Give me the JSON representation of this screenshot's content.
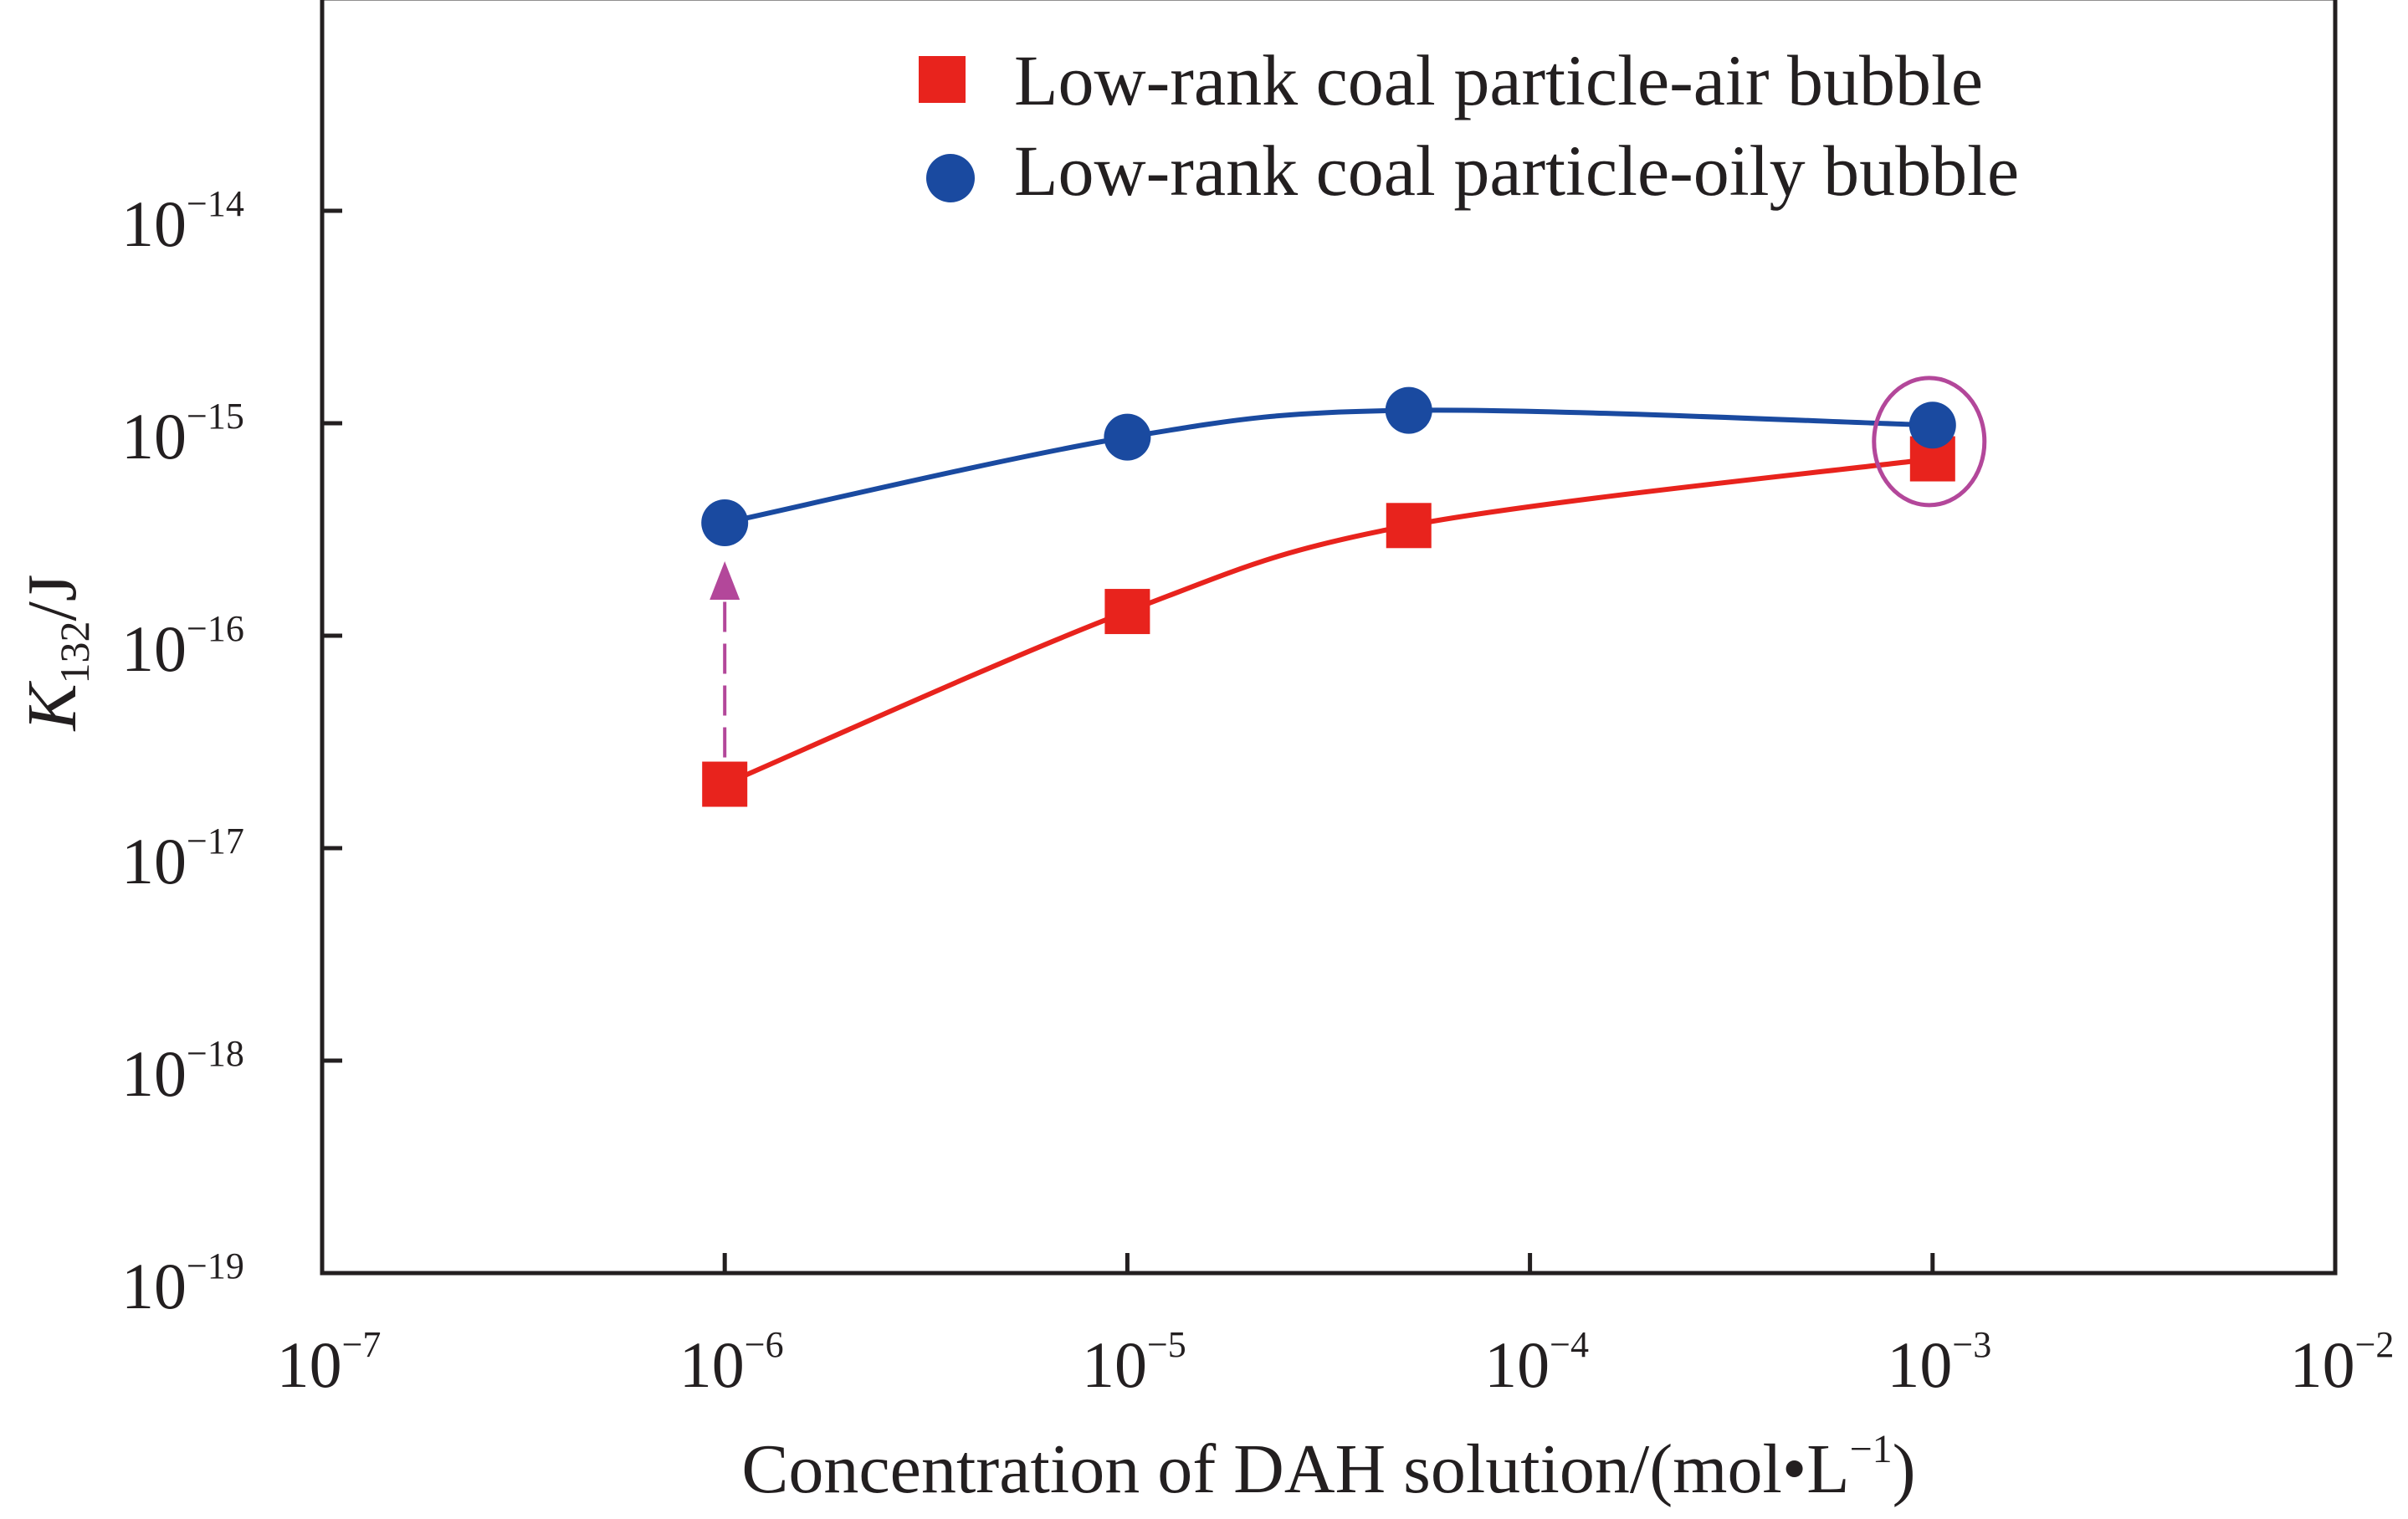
{
  "chart_data": {
    "type": "scatter",
    "title": "",
    "xlabel": {
      "text": "Concentration of DAH solution/(mol•L",
      "sup": "−1",
      "tail": ")"
    },
    "ylabel": {
      "main": "K",
      "sub": "132",
      "tail": "/J"
    },
    "x_scale": "log",
    "y_scale": "log",
    "xlim": [
      1e-07,
      0.01
    ],
    "ylim": [
      1e-19,
      1e-13
    ],
    "x_ticks": [
      {
        "value": 1e-07,
        "base": "10",
        "exp": "−7"
      },
      {
        "value": 1e-06,
        "base": "10",
        "exp": "−6"
      },
      {
        "value": 1e-05,
        "base": "10",
        "exp": "−5"
      },
      {
        "value": 0.0001,
        "base": "10",
        "exp": "−4"
      },
      {
        "value": 0.001,
        "base": "10",
        "exp": "−3"
      },
      {
        "value": 0.01,
        "base": "10",
        "exp": "−2"
      }
    ],
    "y_ticks": [
      {
        "value": 1e-19,
        "base": "10",
        "exp": "−19"
      },
      {
        "value": 1e-18,
        "base": "10",
        "exp": "−18"
      },
      {
        "value": 1e-17,
        "base": "10",
        "exp": "−17"
      },
      {
        "value": 1e-16,
        "base": "10",
        "exp": "−16"
      },
      {
        "value": 1e-15,
        "base": "10",
        "exp": "−15"
      },
      {
        "value": 1e-14,
        "base": "10",
        "exp": "−14"
      }
    ],
    "grid": false,
    "legend_position": "top-right",
    "series": [
      {
        "name": "Low-rank coal particle-air bubble",
        "marker": "square",
        "color": "#e8231d",
        "x": [
          1e-06,
          1e-05,
          5e-05,
          0.001
        ],
        "y": [
          2e-17,
          1.3e-16,
          3.3e-16,
          6.8e-16
        ]
      },
      {
        "name": "Low-rank coal particle-oily bubble",
        "marker": "circle",
        "color": "#1a4aa0",
        "x": [
          1e-06,
          1e-05,
          5e-05,
          0.001
        ],
        "y": [
          3.4e-16,
          8.6e-16,
          1.15e-15,
          9.8e-16
        ]
      }
    ],
    "annotations": [
      {
        "type": "dashed-arrow",
        "color": "#b3479a",
        "x": 1e-06,
        "y_from": 2e-17,
        "y_to": 3.4e-16
      },
      {
        "type": "ellipse",
        "color": "#b3479a",
        "x": 0.001,
        "y": 8.2e-16
      }
    ]
  }
}
